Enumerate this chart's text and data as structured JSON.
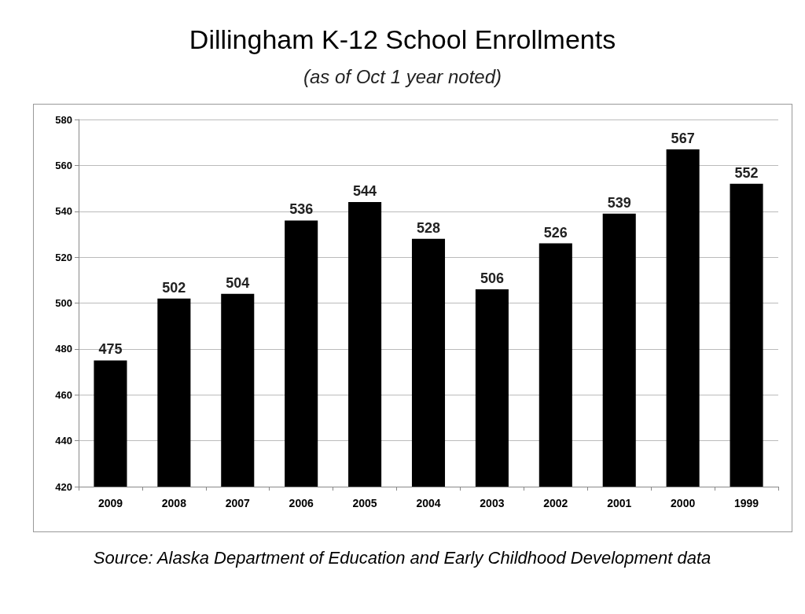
{
  "chart_data": {
    "type": "bar",
    "title": "Dillingham K-12 School Enrollments",
    "subtitle": "(as of Oct 1 year noted)",
    "categories": [
      "2009",
      "2008",
      "2007",
      "2006",
      "2005",
      "2004",
      "2003",
      "2002",
      "2001",
      "2000",
      "1999"
    ],
    "values": [
      475,
      502,
      504,
      536,
      544,
      528,
      506,
      526,
      539,
      567,
      552
    ],
    "color": "#000000",
    "ylim": [
      420,
      580
    ],
    "yticks": [
      420,
      440,
      460,
      480,
      500,
      520,
      540,
      560,
      580
    ],
    "grid": "y",
    "data_labels": true,
    "annotations": [
      "Source: Alaska Department of Education and Early Childhood Development data"
    ]
  }
}
